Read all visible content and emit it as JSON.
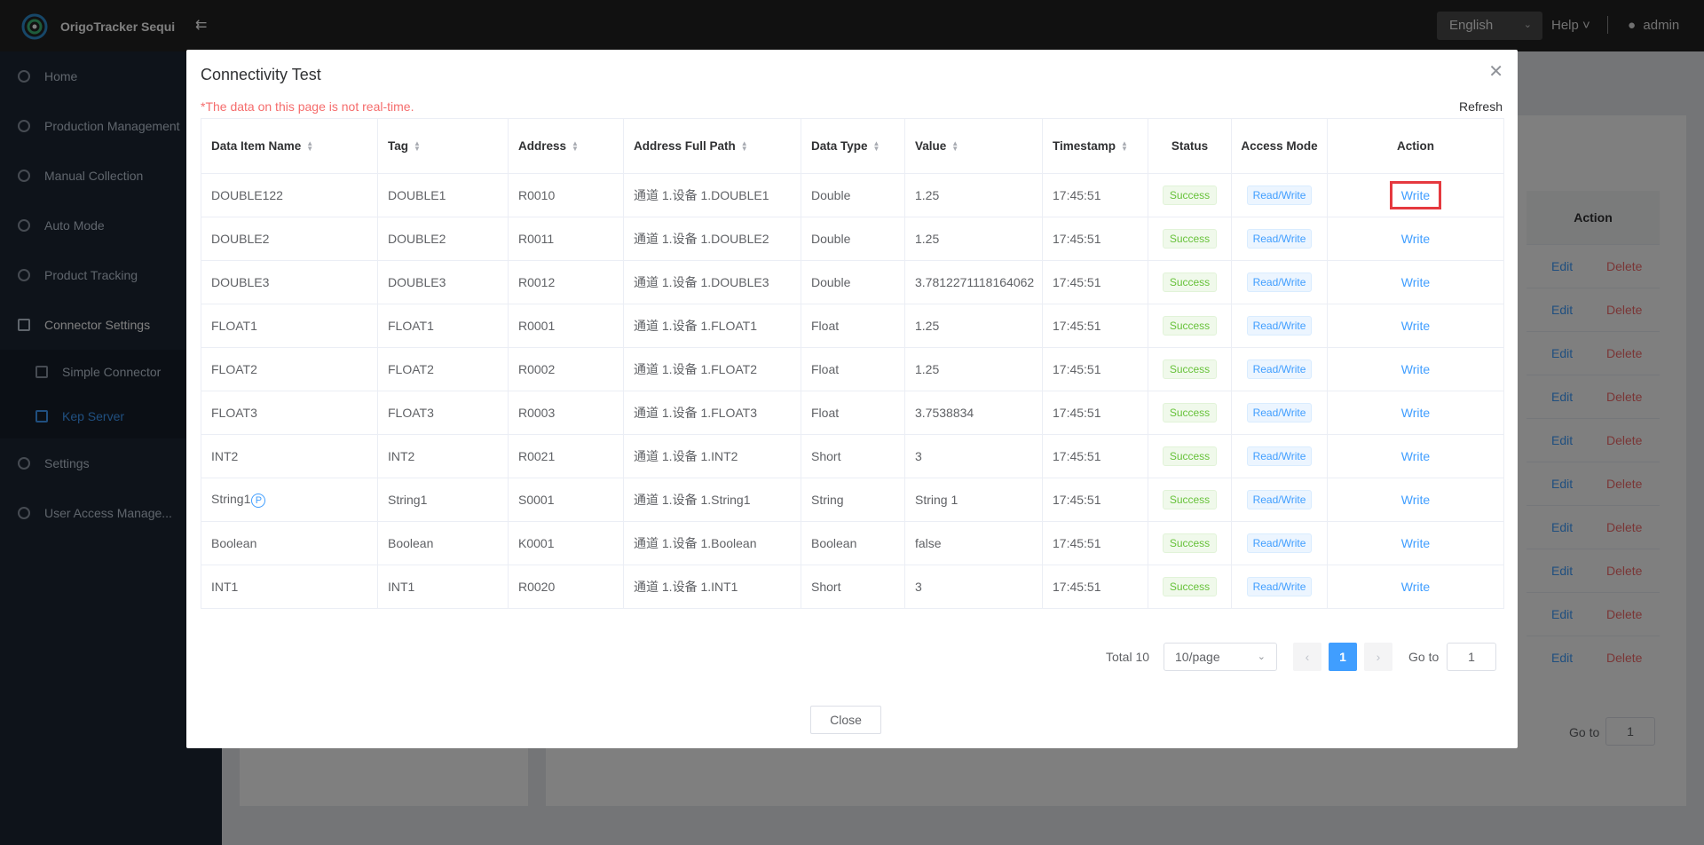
{
  "app": {
    "title": "OrigoTracker Sequi"
  },
  "header": {
    "language": "English",
    "help": "Help",
    "user": "admin"
  },
  "sidebar": {
    "items": [
      {
        "label": "Home"
      },
      {
        "label": "Production Management"
      },
      {
        "label": "Manual Collection"
      },
      {
        "label": "Auto Mode"
      },
      {
        "label": "Product Tracking"
      },
      {
        "label": "Connector Settings"
      },
      {
        "label": "Simple Connector"
      },
      {
        "label": "Kep Server"
      },
      {
        "label": "Settings"
      },
      {
        "label": "User Access Manage..."
      }
    ]
  },
  "background": {
    "action_header": "Action",
    "edit_label": "Edit",
    "delete_label": "Delete",
    "goto_label": "Go to",
    "goto_value": "1"
  },
  "dialog": {
    "title": "Connectivity Test",
    "notice": "*The data on this page is not real-time.",
    "refresh": "Refresh",
    "columns": [
      "Data Item Name",
      "Tag",
      "Address",
      "Address Full Path",
      "Data Type",
      "Value",
      "Timestamp",
      "Status",
      "Access Mode",
      "Action"
    ],
    "rows": [
      {
        "name": "DOUBLE122",
        "tag": "DOUBLE1",
        "address": "R0010",
        "path": "通道 1.设备 1.DOUBLE1",
        "type": "Double",
        "value": "1.25",
        "timestamp": "17:45:51",
        "status": "Success",
        "access": "Read/Write",
        "action": "Write"
      },
      {
        "name": "DOUBLE2",
        "tag": "DOUBLE2",
        "address": "R0011",
        "path": "通道 1.设备 1.DOUBLE2",
        "type": "Double",
        "value": "1.25",
        "timestamp": "17:45:51",
        "status": "Success",
        "access": "Read/Write",
        "action": "Write"
      },
      {
        "name": "DOUBLE3",
        "tag": "DOUBLE3",
        "address": "R0012",
        "path": "通道 1.设备 1.DOUBLE3",
        "type": "Double",
        "value": "3.7812271118164062",
        "timestamp": "17:45:51",
        "status": "Success",
        "access": "Read/Write",
        "action": "Write"
      },
      {
        "name": "FLOAT1",
        "tag": "FLOAT1",
        "address": "R0001",
        "path": "通道 1.设备 1.FLOAT1",
        "type": "Float",
        "value": "1.25",
        "timestamp": "17:45:51",
        "status": "Success",
        "access": "Read/Write",
        "action": "Write"
      },
      {
        "name": "FLOAT2",
        "tag": "FLOAT2",
        "address": "R0002",
        "path": "通道 1.设备 1.FLOAT2",
        "type": "Float",
        "value": "1.25",
        "timestamp": "17:45:51",
        "status": "Success",
        "access": "Read/Write",
        "action": "Write"
      },
      {
        "name": "FLOAT3",
        "tag": "FLOAT3",
        "address": "R0003",
        "path": "通道 1.设备 1.FLOAT3",
        "type": "Float",
        "value": "3.7538834",
        "timestamp": "17:45:51",
        "status": "Success",
        "access": "Read/Write",
        "action": "Write"
      },
      {
        "name": "INT2",
        "tag": "INT2",
        "address": "R0021",
        "path": "通道 1.设备 1.INT2",
        "type": "Short",
        "value": "3",
        "timestamp": "17:45:51",
        "status": "Success",
        "access": "Read/Write",
        "action": "Write"
      },
      {
        "name": "String1",
        "badge": "P",
        "tag": "String1",
        "address": "S0001",
        "path": "通道 1.设备 1.String1",
        "type": "String",
        "value": "String 1",
        "timestamp": "17:45:51",
        "status": "Success",
        "access": "Read/Write",
        "action": "Write"
      },
      {
        "name": "Boolean",
        "tag": "Boolean",
        "address": "K0001",
        "path": "通道 1.设备 1.Boolean",
        "type": "Boolean",
        "value": "false",
        "timestamp": "17:45:51",
        "status": "Success",
        "access": "Read/Write",
        "action": "Write"
      },
      {
        "name": "INT1",
        "tag": "INT1",
        "address": "R0020",
        "path": "通道 1.设备 1.INT1",
        "type": "Short",
        "value": "3",
        "timestamp": "17:45:51",
        "status": "Success",
        "access": "Read/Write",
        "action": "Write"
      }
    ],
    "pagination": {
      "total": "Total 10",
      "page_size": "10/page",
      "current": "1",
      "goto_label": "Go to",
      "goto_value": "1"
    },
    "close": "Close"
  },
  "icons": {
    "collapse": "menu-collapse-icon",
    "close": "close-icon",
    "sort": "sort-caret-icon"
  },
  "colors": {
    "accent": "#409eff",
    "danger": "#f56c6c",
    "success": "#67c23a",
    "highlight": "#e5393f"
  }
}
